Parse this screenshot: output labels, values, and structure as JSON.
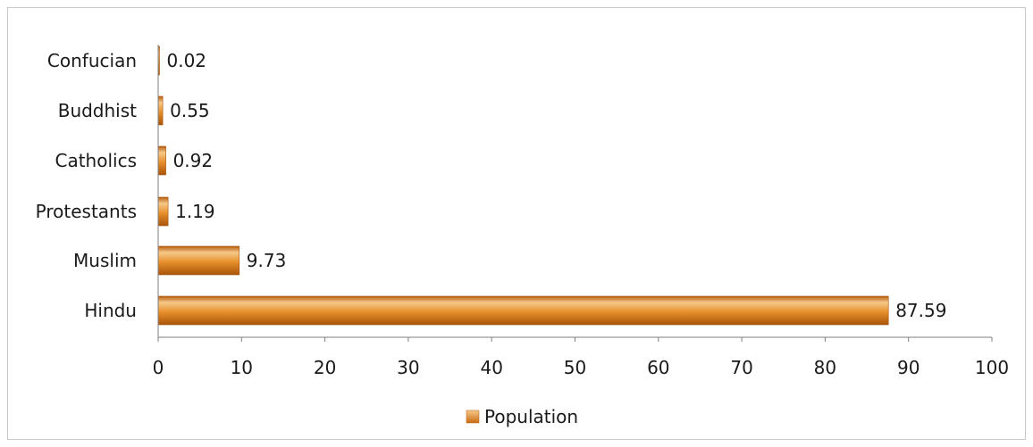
{
  "chart_data": {
    "type": "bar",
    "orientation": "horizontal",
    "categories": [
      "Confucian",
      "Buddhist",
      "Catholics",
      "Protestants",
      "Muslim",
      "Hindu"
    ],
    "series": [
      {
        "name": "Population",
        "values": [
          0.02,
          0.55,
          0.92,
          1.19,
          9.73,
          87.59
        ]
      }
    ],
    "data_labels": [
      "0.02",
      "0.55",
      "0.92",
      "1.19",
      "9.73",
      "87.59"
    ],
    "x_ticks": [
      "0",
      "10",
      "20",
      "30",
      "40",
      "50",
      "60",
      "70",
      "80",
      "90",
      "100"
    ],
    "xlim": [
      0,
      100
    ],
    "grid": false,
    "legend_position": "bottom",
    "colors": {
      "bar_light": "#f6c98a",
      "bar_mid": "#e8902c",
      "bar_dark": "#b65d0d",
      "axis": "#7f7f7f"
    }
  }
}
